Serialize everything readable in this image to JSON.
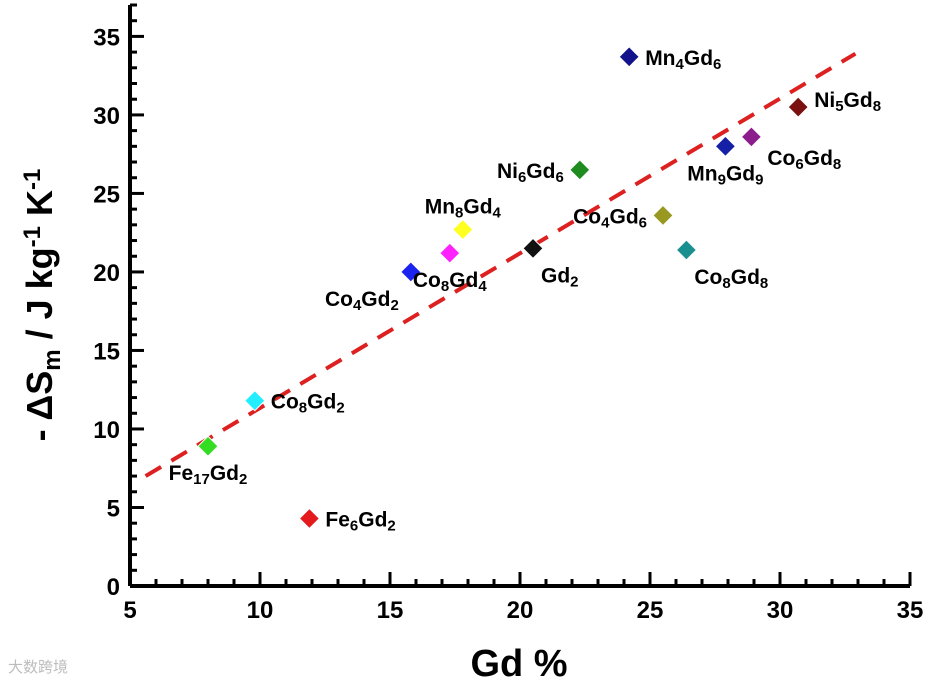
{
  "chart_data": {
    "type": "scatter",
    "xlabel": "Gd %",
    "ylabel_parts": {
      "prefix": "- ΔS",
      "sub": "m",
      "mid1": " / J kg",
      "sup1": "-1",
      "mid2": " K",
      "sup2": "-1"
    },
    "xlim": [
      5,
      35
    ],
    "ylim": [
      0,
      37
    ],
    "xticks": [
      5,
      10,
      15,
      20,
      25,
      30,
      35
    ],
    "yticks": [
      0,
      5,
      10,
      15,
      20,
      25,
      30,
      35
    ],
    "grid": false,
    "points": [
      {
        "name": "Fe6Gd2",
        "label": [
          [
            "Fe",
            ""
          ],
          [
            "6",
            "s"
          ],
          [
            "Gd",
            ""
          ],
          [
            "2",
            "s"
          ]
        ],
        "x": 11.9,
        "y": 4.3,
        "color": "#e41a1c",
        "label_pos": "right"
      },
      {
        "name": "Fe17Gd2",
        "label": [
          [
            "Fe",
            ""
          ],
          [
            "17",
            "s"
          ],
          [
            "Gd",
            ""
          ],
          [
            "2",
            "s"
          ]
        ],
        "x": 8.0,
        "y": 8.9,
        "color": "#33dd22",
        "label_pos": "below"
      },
      {
        "name": "Co8Gd2",
        "label": [
          [
            "Co",
            ""
          ],
          [
            "8",
            "s"
          ],
          [
            "Gd",
            ""
          ],
          [
            "2",
            "s"
          ]
        ],
        "x": 9.8,
        "y": 11.8,
        "color": "#22eeff",
        "label_pos": "right"
      },
      {
        "name": "Co4Gd2",
        "label": [
          [
            "Co",
            ""
          ],
          [
            "4",
            "s"
          ],
          [
            "Gd",
            ""
          ],
          [
            "2",
            "s"
          ]
        ],
        "x": 15.8,
        "y": 20.0,
        "color": "#1a24ee",
        "label_pos": "below-left"
      },
      {
        "name": "Co8Gd4",
        "label": [
          [
            "Co",
            ""
          ],
          [
            "8",
            "s"
          ],
          [
            "Gd",
            ""
          ],
          [
            "4",
            "s"
          ]
        ],
        "x": 17.3,
        "y": 21.2,
        "color": "#ff22ff",
        "label_pos": "below"
      },
      {
        "name": "Mn8Gd4",
        "label": [
          [
            "Mn",
            ""
          ],
          [
            "8",
            "s"
          ],
          [
            "Gd",
            ""
          ],
          [
            "4",
            "s"
          ]
        ],
        "x": 17.8,
        "y": 22.7,
        "color": "#ffff22",
        "label_pos": "above"
      },
      {
        "name": "Gd2",
        "label": [
          [
            "Gd",
            ""
          ],
          [
            "2",
            "s"
          ]
        ],
        "x": 20.5,
        "y": 21.5,
        "color": "#111111",
        "label_pos": "below-right"
      },
      {
        "name": "Ni6Gd6",
        "label": [
          [
            "Ni",
            ""
          ],
          [
            "6",
            "s"
          ],
          [
            "Gd",
            ""
          ],
          [
            "6",
            "s"
          ]
        ],
        "x": 22.3,
        "y": 26.5,
        "color": "#1e8c1e",
        "label_pos": "left"
      },
      {
        "name": "Co4Gd6",
        "label": [
          [
            "Co",
            ""
          ],
          [
            "4",
            "s"
          ],
          [
            "Gd",
            ""
          ],
          [
            "6",
            "s"
          ]
        ],
        "x": 25.5,
        "y": 23.6,
        "color": "#999922",
        "label_pos": "left"
      },
      {
        "name": "Mn4Gd6",
        "label": [
          [
            "Mn",
            ""
          ],
          [
            "4",
            "s"
          ],
          [
            "Gd",
            ""
          ],
          [
            "6",
            "s"
          ]
        ],
        "x": 24.2,
        "y": 33.7,
        "color": "#12128a",
        "label_pos": "right"
      },
      {
        "name": "Co8Gd8",
        "label": [
          [
            "Co",
            ""
          ],
          [
            "8",
            "s"
          ],
          [
            "Gd",
            ""
          ],
          [
            "8",
            "s"
          ]
        ],
        "x": 26.4,
        "y": 21.4,
        "color": "#1a8f8f",
        "label_pos": "below-right"
      },
      {
        "name": "Mn9Gd9",
        "label": [
          [
            "Mn",
            ""
          ],
          [
            "9",
            "s"
          ],
          [
            "Gd",
            ""
          ],
          [
            "9",
            "s"
          ]
        ],
        "x": 27.9,
        "y": 28.0,
        "color": "#1520a6",
        "label_pos": "below"
      },
      {
        "name": "Co6Gd8",
        "label": [
          [
            "Co",
            ""
          ],
          [
            "6",
            "s"
          ],
          [
            "Gd",
            ""
          ],
          [
            "8",
            "s"
          ]
        ],
        "x": 28.9,
        "y": 28.6,
        "color": "#8c1d8c",
        "label_pos": "right-below"
      },
      {
        "name": "Ni5Gd8",
        "label": [
          [
            "Ni",
            ""
          ],
          [
            "5",
            "s"
          ],
          [
            "Gd",
            ""
          ],
          [
            "8",
            "s"
          ]
        ],
        "x": 30.7,
        "y": 30.5,
        "color": "#7a1010",
        "label_pos": "right-above"
      }
    ],
    "fit_line": {
      "style": "dashed",
      "color": "#dd2020",
      "x": [
        5.6,
        32.9
      ],
      "y": [
        7.0,
        33.9
      ]
    }
  },
  "watermark": {
    "text": "大数跨境"
  }
}
